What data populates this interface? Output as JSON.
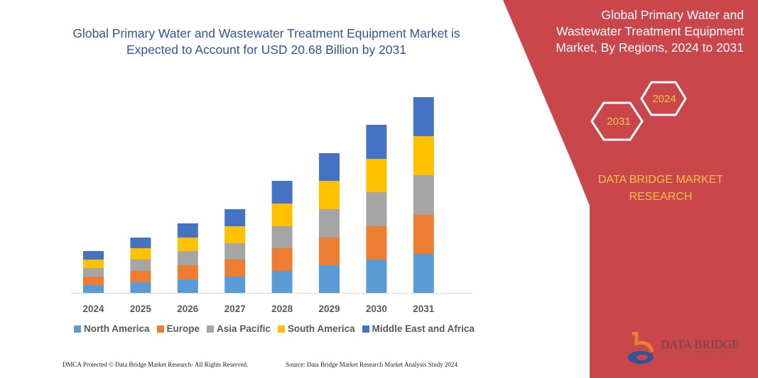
{
  "title": "Global Primary Water and Wastewater Treatment Equipment Market is Expected to Account for USD 20.68 Billion by 2031",
  "side_panel": {
    "title": "Global Primary Water and Wastewater Treatment Equipment Market, By Regions, 2024 to 2031",
    "hex_a": "2024",
    "hex_b": "2031",
    "brand": "DATA BRIDGE MARKET RESEARCH",
    "color": "#c9474b"
  },
  "logo": {
    "text": "DATA BRIDGE",
    "sub": "MARKET RESEARCH"
  },
  "footer": {
    "left": "DMCA Protected © Data Bridge Market Research- All Rights Reserved.",
    "right": "Source: Data Bridge Market Research Market Analysis Study 2024"
  },
  "chart_data": {
    "type": "bar",
    "stacked": true,
    "categories": [
      "2024",
      "2025",
      "2026",
      "2027",
      "2028",
      "2029",
      "2030",
      "2031"
    ],
    "series": [
      {
        "name": "North America",
        "color": "#5b9bd5",
        "values": [
          11,
          15,
          19,
          23,
          31,
          39,
          47,
          55
        ]
      },
      {
        "name": "Europe",
        "color": "#ed7d31",
        "values": [
          12,
          16,
          20,
          24,
          32,
          39,
          47,
          55
        ]
      },
      {
        "name": "Asia Pacific",
        "color": "#a5a5a5",
        "values": [
          12,
          16,
          20,
          23,
          31,
          40,
          48,
          56
        ]
      },
      {
        "name": "South America",
        "color": "#ffc000",
        "values": [
          12,
          16,
          19,
          24,
          32,
          40,
          47,
          55
        ]
      },
      {
        "name": "Middle East and Africa",
        "color": "#4472c4",
        "values": [
          12,
          15,
          20,
          24,
          32,
          39,
          48,
          55
        ]
      }
    ],
    "legend": "bottom",
    "grid": false,
    "y_axis_shown": false
  }
}
